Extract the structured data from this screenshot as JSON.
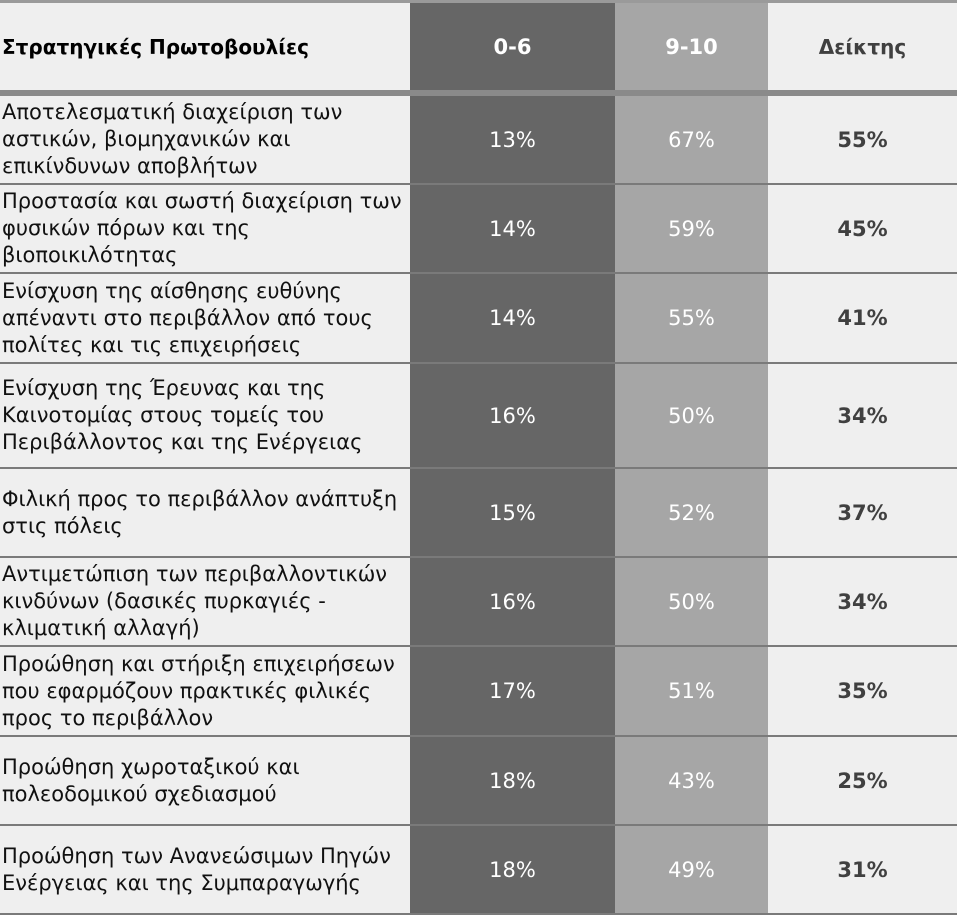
{
  "header": {
    "label": "Στρατηγικές Πρωτοβουλίες",
    "low": "0-6",
    "high": "9-10",
    "index": "Δείκτης"
  },
  "rows": [
    {
      "label": "Αποτελεσματική διαχείριση των αστικών, βιομηχανικών και επικίνδυνων αποβλήτων",
      "low": "13%",
      "high": "67%",
      "index": "55%"
    },
    {
      "label": "Προστασία και σωστή διαχείριση των φυσικών πόρων και της βιοποικιλότητας",
      "low": "14%",
      "high": "59%",
      "index": "45%"
    },
    {
      "label": "Ενίσχυση της αίσθησης ευθύνης απέναντι στο περιβάλλον από τους πολίτες και τις επιχειρήσεις",
      "low": "14%",
      "high": "55%",
      "index": "41%"
    },
    {
      "label": "Ενίσχυση της Έρευνας και της Καινοτομίας στους τομείς του Περιβάλλοντος και της Ενέργειας",
      "low": "16%",
      "high": "50%",
      "index": "34%"
    },
    {
      "label": "Φιλική προς το περιβάλλον ανάπτυξη στις πόλεις",
      "low": "15%",
      "high": "52%",
      "index": "37%"
    },
    {
      "label": "Αντιμετώπιση των περιβαλλοντικών κινδύνων (δασικές πυρκαγιές - κλιματική αλλαγή)",
      "low": "16%",
      "high": "50%",
      "index": "34%"
    },
    {
      "label": "Προώθηση και στήριξη επιχειρήσεων που εφαρμόζουν πρακτικές φιλικές προς το περιβάλλον",
      "low": "17%",
      "high": "51%",
      "index": "35%"
    },
    {
      "label": "Προώθηση χωροταξικού και πολεοδομικού σχεδιασμού",
      "low": "18%",
      "high": "43%",
      "index": "25%"
    },
    {
      "label": "Προώθηση των Ανανεώσιμων Πηγών Ενέργειας και της Συμπαραγωγής",
      "low": "18%",
      "high": "49%",
      "index": "31%"
    }
  ],
  "colors": {
    "low_column": "#666666",
    "high_column": "#a6a6a6",
    "light_column": "#efefef"
  }
}
